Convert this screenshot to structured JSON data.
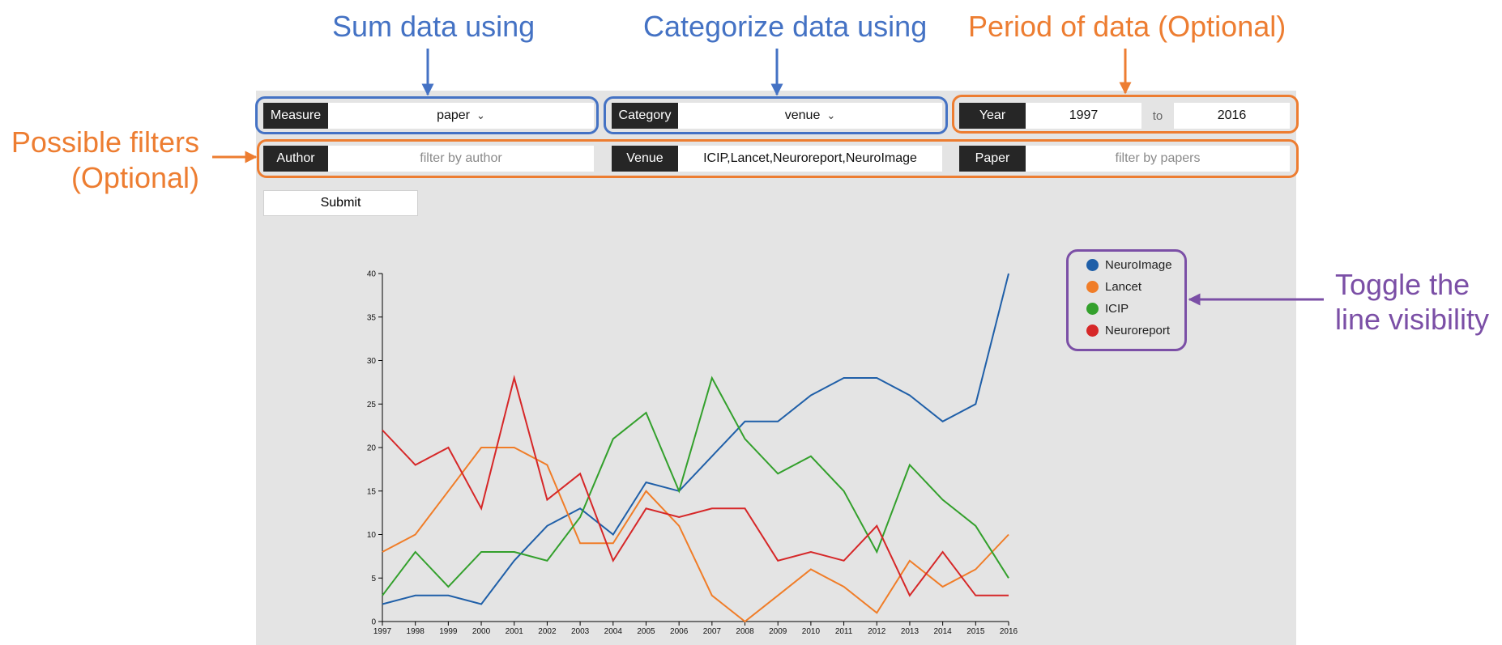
{
  "callouts": {
    "sum": "Sum data using",
    "categorize": "Categorize data using",
    "period": "Period of data (Optional)",
    "filters_line1": "Possible filters",
    "filters_line2": "(Optional)",
    "toggle_line1": "Toggle the",
    "toggle_line2": "line visibility"
  },
  "controls": {
    "measure": {
      "label": "Measure",
      "value": "paper"
    },
    "category": {
      "label": "Category",
      "value": "venue"
    },
    "year": {
      "label": "Year",
      "from": "1997",
      "to_label": "to",
      "to": "2016"
    },
    "author": {
      "label": "Author",
      "placeholder": "filter by author"
    },
    "venue": {
      "label": "Venue",
      "value": "ICIP,Lancet,Neuroreport,NeuroImage"
    },
    "paper": {
      "label": "Paper",
      "placeholder": "filter by papers"
    },
    "submit": "Submit"
  },
  "colors": {
    "callout_blue": "#4472C4",
    "callout_orange": "#ED7D31",
    "callout_purple": "#7B4FA6",
    "panel_bg": "#e4e4e4"
  },
  "chart_data": {
    "type": "line",
    "x": [
      1997,
      1998,
      1999,
      2000,
      2001,
      2002,
      2003,
      2004,
      2005,
      2006,
      2007,
      2008,
      2009,
      2010,
      2011,
      2012,
      2013,
      2014,
      2015,
      2016
    ],
    "ylim": [
      0,
      40
    ],
    "yticks": [
      0,
      5,
      10,
      15,
      20,
      25,
      30,
      35,
      40
    ],
    "legend_position": "top-right",
    "series": [
      {
        "name": "NeuroImage",
        "color": "#1f5fa8",
        "values": [
          2,
          3,
          3,
          2,
          7,
          11,
          13,
          10,
          16,
          15,
          19,
          23,
          23,
          26,
          28,
          28,
          26,
          23,
          25,
          40
        ]
      },
      {
        "name": "Lancet",
        "color": "#f07d28",
        "values": [
          8,
          10,
          15,
          20,
          20,
          18,
          9,
          9,
          15,
          11,
          3,
          0,
          3,
          6,
          4,
          1,
          7,
          4,
          6,
          10
        ]
      },
      {
        "name": "ICIP",
        "color": "#33a02c",
        "values": [
          3,
          8,
          4,
          8,
          8,
          7,
          12,
          21,
          24,
          15,
          28,
          21,
          17,
          19,
          15,
          8,
          18,
          14,
          11,
          5
        ]
      },
      {
        "name": "Neuroreport",
        "color": "#d62728",
        "values": [
          22,
          18,
          20,
          13,
          28,
          14,
          17,
          7,
          13,
          12,
          13,
          13,
          7,
          8,
          7,
          11,
          3,
          8,
          3,
          3
        ]
      }
    ]
  }
}
